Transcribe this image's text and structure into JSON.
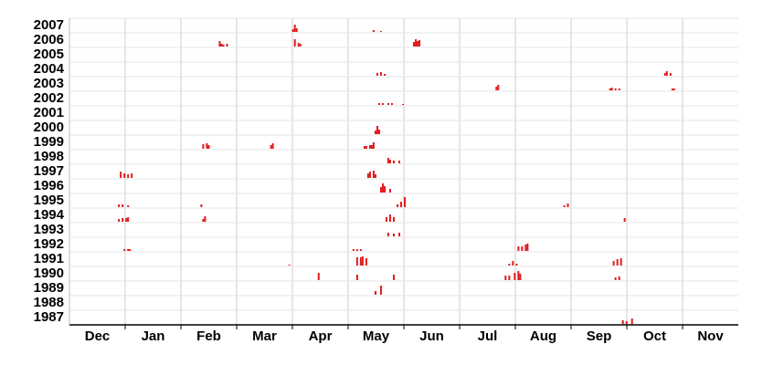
{
  "chart_data": {
    "type": "event-timeline",
    "color": "#e31a1c",
    "grid": true,
    "xlim": [
      0,
      365
    ],
    "months": [
      "Dec",
      "Jan",
      "Feb",
      "Mar",
      "Apr",
      "May",
      "Jun",
      "Jul",
      "Aug",
      "Sep",
      "Oct",
      "Nov"
    ],
    "rows": [
      {
        "year": "2007",
        "days": [
          122,
          123,
          124,
          166,
          170
        ],
        "values": [
          3,
          8,
          4,
          2,
          1
        ]
      },
      {
        "year": "2006",
        "days": [
          82,
          83,
          84,
          86,
          123,
          125,
          126,
          188,
          189,
          190,
          191
        ],
        "values": [
          6,
          3,
          2,
          3,
          8,
          4,
          3,
          5,
          8,
          6,
          7
        ]
      },
      {
        "year": "2005",
        "days": [],
        "values": []
      },
      {
        "year": "2004",
        "days": [
          168,
          170,
          172,
          325,
          326,
          328
        ],
        "values": [
          3,
          4,
          2,
          3,
          5,
          3
        ]
      },
      {
        "year": "2003",
        "days": [
          233,
          234,
          295,
          296,
          298,
          300,
          329,
          330
        ],
        "values": [
          4,
          6,
          2,
          3,
          2,
          2,
          2,
          2
        ]
      },
      {
        "year": "2002",
        "days": [
          169,
          171,
          174,
          176,
          182
        ],
        "values": [
          2,
          2,
          2,
          2,
          1
        ]
      },
      {
        "year": "2001",
        "days": [],
        "values": []
      },
      {
        "year": "2000",
        "days": [
          167,
          168,
          169
        ],
        "values": [
          4,
          9,
          5
        ]
      },
      {
        "year": "1999",
        "days": [
          73,
          75,
          76,
          110,
          111,
          161,
          162,
          164,
          165,
          166
        ],
        "values": [
          5,
          6,
          4,
          4,
          6,
          3,
          3,
          4,
          4,
          7
        ]
      },
      {
        "year": "1998",
        "days": [
          174,
          175,
          177,
          180
        ],
        "values": [
          6,
          4,
          3,
          3
        ]
      },
      {
        "year": "1997",
        "days": [
          28,
          30,
          32,
          34,
          163,
          164,
          166,
          167
        ],
        "values": [
          7,
          5,
          4,
          5,
          5,
          7,
          8,
          4
        ]
      },
      {
        "year": "1996",
        "days": [
          170,
          171,
          172,
          175
        ],
        "values": [
          6,
          10,
          7,
          4
        ]
      },
      {
        "year": "1995",
        "days": [
          27,
          29,
          32,
          72,
          179,
          181,
          183,
          270,
          272
        ],
        "values": [
          3,
          3,
          2,
          3,
          3,
          6,
          11,
          2,
          4
        ]
      },
      {
        "year": "1994",
        "days": [
          27,
          29,
          31,
          32,
          73,
          74,
          173,
          175,
          177,
          303
        ],
        "values": [
          3,
          4,
          4,
          5,
          3,
          6,
          5,
          8,
          5,
          4
        ]
      },
      {
        "year": "1993",
        "days": [
          174,
          177,
          180
        ],
        "values": [
          4,
          3,
          4
        ]
      },
      {
        "year": "1992",
        "days": [
          30,
          32,
          33,
          155,
          157,
          159,
          245,
          247,
          249,
          250
        ],
        "values": [
          2,
          2,
          2,
          2,
          2,
          2,
          5,
          5,
          7,
          8
        ]
      },
      {
        "year": "1991",
        "days": [
          120,
          157,
          159,
          160,
          162,
          240,
          242,
          244,
          297,
          299,
          301
        ],
        "values": [
          1,
          9,
          9,
          10,
          8,
          2,
          5,
          2,
          5,
          7,
          8
        ]
      },
      {
        "year": "1990",
        "days": [
          136,
          157,
          177,
          238,
          240,
          243,
          245,
          246,
          298,
          300
        ],
        "values": [
          8,
          6,
          6,
          5,
          5,
          8,
          10,
          7,
          3,
          4
        ]
      },
      {
        "year": "1989",
        "days": [
          167,
          170
        ],
        "values": [
          4,
          10
        ]
      },
      {
        "year": "1988",
        "days": [],
        "values": []
      },
      {
        "year": "1987",
        "days": [
          302,
          304,
          307
        ],
        "values": [
          4,
          3,
          6
        ]
      }
    ]
  }
}
